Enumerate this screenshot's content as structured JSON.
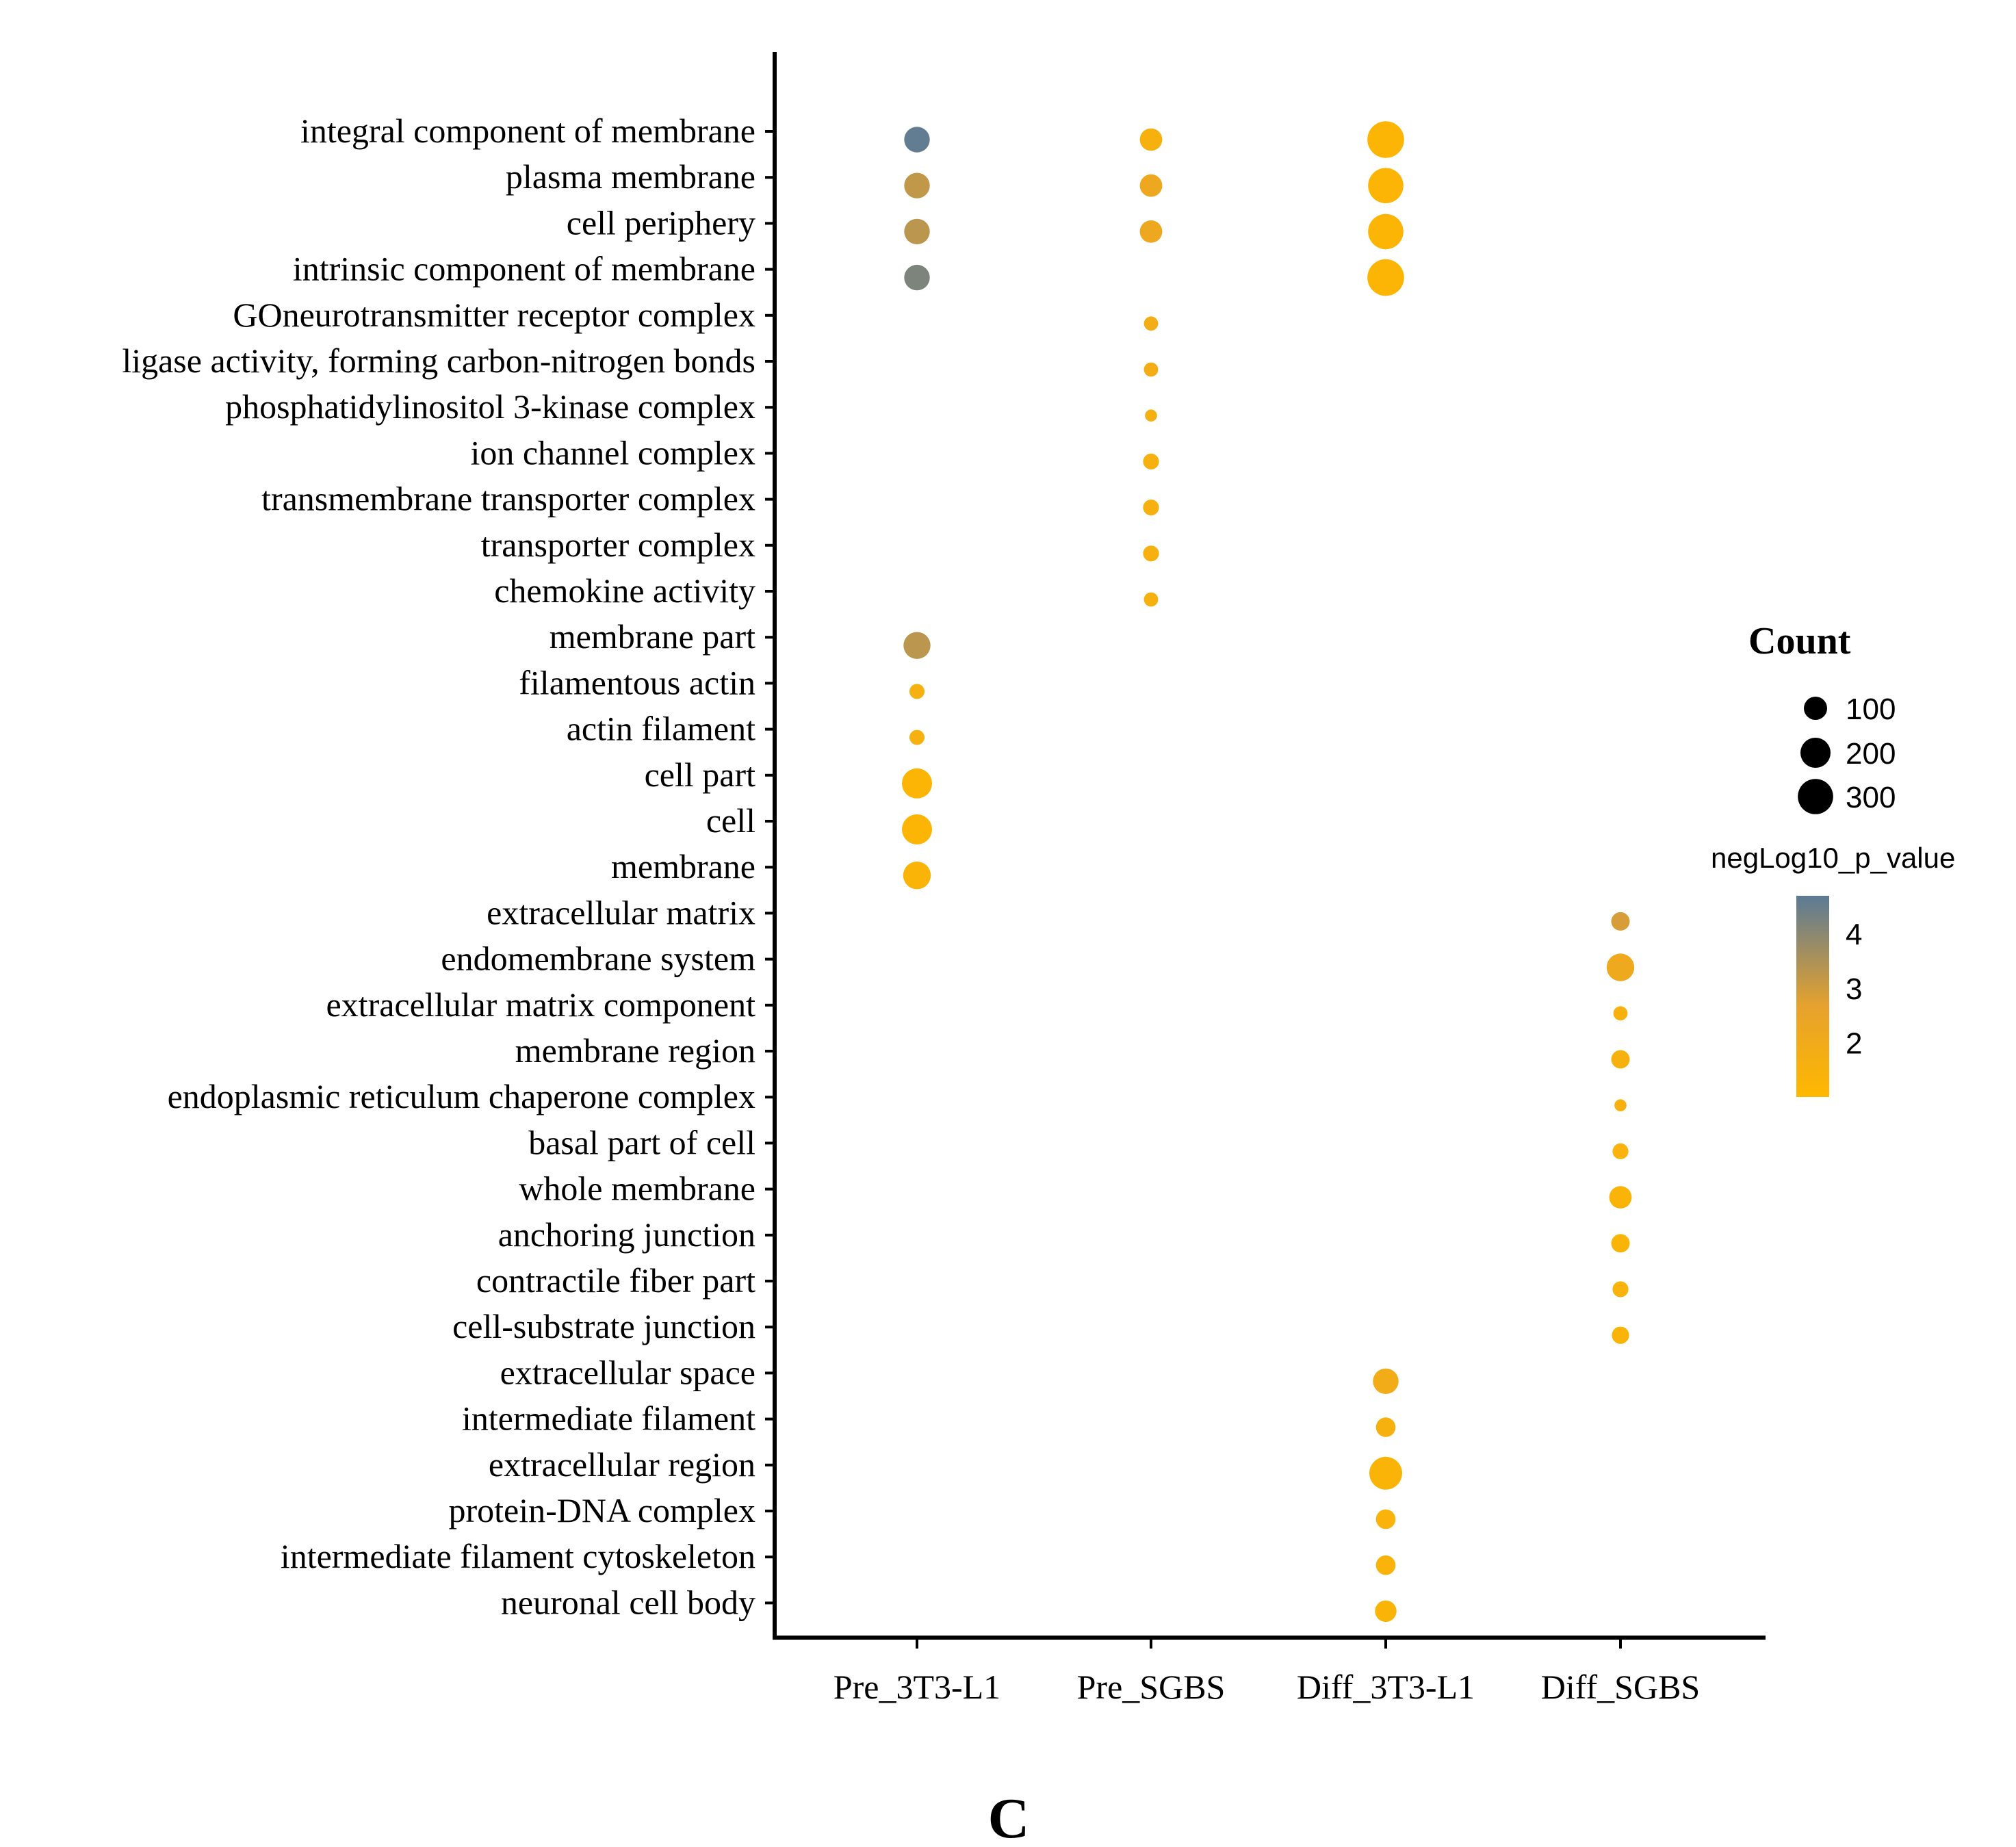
{
  "chart_data": {
    "type": "scatter",
    "subtype": "bubble",
    "panel_label": "C",
    "columns": [
      "Pre_3T3-L1",
      "Pre_SGBS",
      "Diff_3T3-L1",
      "Diff_SGBS"
    ],
    "terms": [
      "integral component of membrane",
      "plasma membrane",
      "cell periphery",
      "intrinsic component of membrane",
      "GOneurotransmitter receptor complex",
      "ligase activity, forming carbon-nitrogen bonds",
      "phosphatidylinositol 3-kinase complex",
      "ion channel complex",
      "transmembrane transporter complex",
      "transporter complex",
      "chemokine activity",
      "membrane part",
      "filamentous actin",
      "actin filament",
      "cell part",
      "cell",
      "membrane",
      "extracellular matrix",
      "endomembrane system",
      "extracellular matrix component",
      "membrane region",
      "endoplasmic reticulum chaperone complex",
      "basal part of cell",
      "whole membrane",
      "anchoring junction",
      "contractile fiber part",
      "cell-substrate junction",
      "extracellular space",
      "intermediate filament",
      "extracellular region",
      "protein-DNA complex",
      "intermediate filament cytoskeleton",
      "neuronal cell body"
    ],
    "points": [
      {
        "term": "integral component of membrane",
        "group": "Pre_3T3-L1",
        "count": 130,
        "neglog10p": 4.6
      },
      {
        "term": "plasma membrane",
        "group": "Pre_3T3-L1",
        "count": 130,
        "neglog10p": 3.2
      },
      {
        "term": "cell periphery",
        "group": "Pre_3T3-L1",
        "count": 130,
        "neglog10p": 3.3
      },
      {
        "term": "intrinsic component of membrane",
        "group": "Pre_3T3-L1",
        "count": 130,
        "neglog10p": 4.2
      },
      {
        "term": "membrane part",
        "group": "Pre_3T3-L1",
        "count": 150,
        "neglog10p": 3.3
      },
      {
        "term": "filamentous actin",
        "group": "Pre_3T3-L1",
        "count": 25,
        "neglog10p": 1.6
      },
      {
        "term": "actin filament",
        "group": "Pre_3T3-L1",
        "count": 25,
        "neglog10p": 1.6
      },
      {
        "term": "cell part",
        "group": "Pre_3T3-L1",
        "count": 200,
        "neglog10p": 1.2
      },
      {
        "term": "cell",
        "group": "Pre_3T3-L1",
        "count": 200,
        "neglog10p": 1.2
      },
      {
        "term": "membrane",
        "group": "Pre_3T3-L1",
        "count": 160,
        "neglog10p": 1.3
      },
      {
        "term": "integral component of membrane",
        "group": "Pre_SGBS",
        "count": 90,
        "neglog10p": 1.5
      },
      {
        "term": "plasma membrane",
        "group": "Pre_SGBS",
        "count": 90,
        "neglog10p": 2.2
      },
      {
        "term": "cell periphery",
        "group": "Pre_SGBS",
        "count": 90,
        "neglog10p": 2.2
      },
      {
        "term": "GOneurotransmitter receptor complex",
        "group": "Pre_SGBS",
        "count": 20,
        "neglog10p": 1.8
      },
      {
        "term": "ligase activity, forming carbon-nitrogen bonds",
        "group": "Pre_SGBS",
        "count": 20,
        "neglog10p": 1.8
      },
      {
        "term": "phosphatidylinositol 3-kinase complex",
        "group": "Pre_SGBS",
        "count": 10,
        "neglog10p": 1.7
      },
      {
        "term": "ion channel complex",
        "group": "Pre_SGBS",
        "count": 30,
        "neglog10p": 1.6
      },
      {
        "term": "transmembrane transporter complex",
        "group": "Pre_SGBS",
        "count": 30,
        "neglog10p": 1.6
      },
      {
        "term": "transporter complex",
        "group": "Pre_SGBS",
        "count": 30,
        "neglog10p": 1.6
      },
      {
        "term": "chemokine activity",
        "group": "Pre_SGBS",
        "count": 20,
        "neglog10p": 1.6
      },
      {
        "term": "integral component of membrane",
        "group": "Diff_3T3-L1",
        "count": 330,
        "neglog10p": 1.2
      },
      {
        "term": "plasma membrane",
        "group": "Diff_3T3-L1",
        "count": 300,
        "neglog10p": 1.2
      },
      {
        "term": "cell periphery",
        "group": "Diff_3T3-L1",
        "count": 300,
        "neglog10p": 1.2
      },
      {
        "term": "intrinsic component of membrane",
        "group": "Diff_3T3-L1",
        "count": 330,
        "neglog10p": 1.2
      },
      {
        "term": "extracellular space",
        "group": "Diff_3T3-L1",
        "count": 130,
        "neglog10p": 1.9
      },
      {
        "term": "intermediate filament",
        "group": "Diff_3T3-L1",
        "count": 60,
        "neglog10p": 1.5
      },
      {
        "term": "extracellular region",
        "group": "Diff_3T3-L1",
        "count": 250,
        "neglog10p": 1.3
      },
      {
        "term": "protein-DNA complex",
        "group": "Diff_3T3-L1",
        "count": 60,
        "neglog10p": 1.4
      },
      {
        "term": "intermediate filament cytoskeleton",
        "group": "Diff_3T3-L1",
        "count": 60,
        "neglog10p": 1.4
      },
      {
        "term": "neuronal cell body",
        "group": "Diff_3T3-L1",
        "count": 80,
        "neglog10p": 1.3
      },
      {
        "term": "extracellular matrix",
        "group": "Diff_SGBS",
        "count": 50,
        "neglog10p": 2.9
      },
      {
        "term": "endomembrane system",
        "group": "Diff_SGBS",
        "count": 160,
        "neglog10p": 2.1
      },
      {
        "term": "extracellular matrix component",
        "group": "Diff_SGBS",
        "count": 20,
        "neglog10p": 1.5
      },
      {
        "term": "membrane region",
        "group": "Diff_SGBS",
        "count": 50,
        "neglog10p": 1.5
      },
      {
        "term": "endoplasmic reticulum chaperone complex",
        "group": "Diff_SGBS",
        "count": 10,
        "neglog10p": 1.5
      },
      {
        "term": "basal part of cell",
        "group": "Diff_SGBS",
        "count": 30,
        "neglog10p": 1.4
      },
      {
        "term": "whole membrane",
        "group": "Diff_SGBS",
        "count": 90,
        "neglog10p": 1.3
      },
      {
        "term": "anchoring junction",
        "group": "Diff_SGBS",
        "count": 50,
        "neglog10p": 1.3
      },
      {
        "term": "contractile fiber part",
        "group": "Diff_SGBS",
        "count": 30,
        "neglog10p": 1.4
      },
      {
        "term": "cell-substrate junction",
        "group": "Diff_SGBS",
        "count": 40,
        "neglog10p": 1.3
      }
    ],
    "size_legend": {
      "title": "Count",
      "values": [
        100,
        200,
        300
      ],
      "labels": [
        "100",
        "200",
        "300"
      ]
    },
    "color_legend": {
      "title": "negLog10_p_value",
      "range": [
        1.0,
        4.7
      ],
      "ticks": [
        4,
        3,
        2
      ],
      "tick_labels": [
        "4",
        "3",
        "2"
      ],
      "low_color": "#FFB800",
      "mid_color": "#E6A22D",
      "high_color": "#5B7A96"
    },
    "xlabel": "",
    "ylabel": ""
  }
}
